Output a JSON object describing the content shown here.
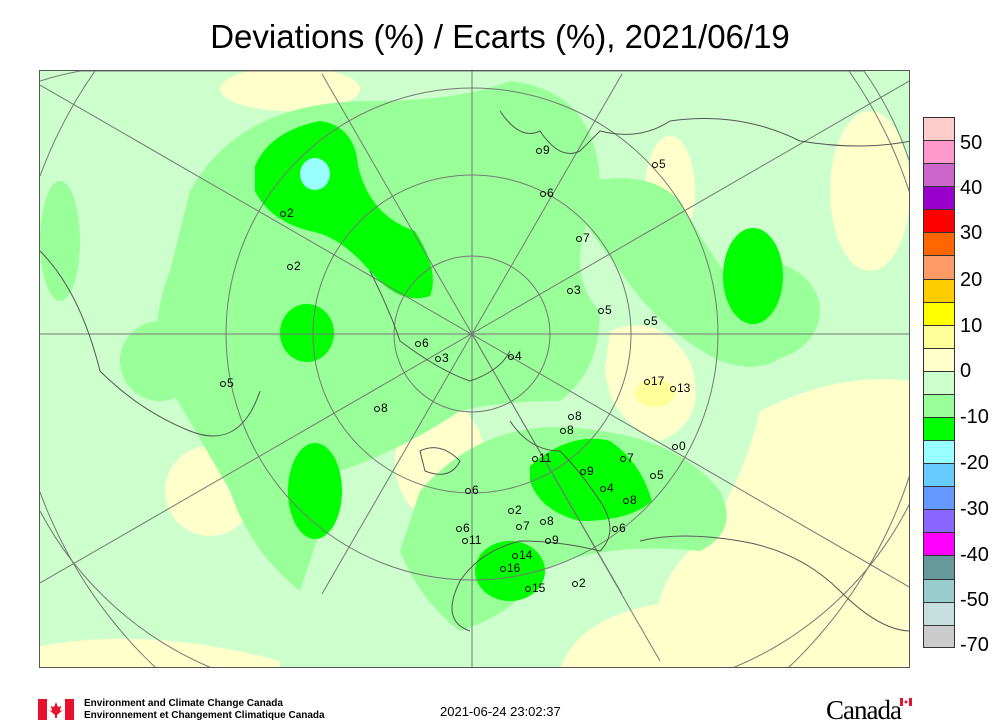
{
  "title": "Deviations (%) / Ecarts (%), 2021/06/19",
  "legend": {
    "colors": [
      "#ffcccc",
      "#ff99cc",
      "#cc66cc",
      "#9900cc",
      "#ff0000",
      "#ff6600",
      "#ff9966",
      "#ffcc00",
      "#ffff00",
      "#ffff99",
      "#ffffcc",
      "#ccffcc",
      "#99ff99",
      "#00ff00",
      "#99ffff",
      "#66ccff",
      "#6699ff",
      "#8866ff",
      "#ff00ff",
      "#669999",
      "#99cccc",
      "#c5dfdf",
      "#cccccc"
    ],
    "labels": [
      "50",
      "40",
      "30",
      "20",
      "10",
      "0",
      "-10",
      "-20",
      "-30",
      "-40",
      "-50",
      "-70"
    ]
  },
  "map": {
    "projection": "north polar stereographic",
    "fill_colors": {
      "background": "#ccffcc",
      "positive_0_5": "#ffffcc",
      "positive_5_10": "#ffff99",
      "negative_5_10": "#99ff99",
      "negative_10_15": "#00ff00",
      "negative_15_20": "#99ffff"
    },
    "stations": [
      "11",
      "9",
      "4",
      "8",
      "7",
      "5",
      "0",
      "6",
      "2",
      "8",
      "7",
      "6",
      "11",
      "8",
      "9",
      "14",
      "16",
      "15",
      "2",
      "6",
      "8",
      "17",
      "13",
      "4",
      "5",
      "5",
      "3",
      "9",
      "6",
      "5",
      "7",
      "2",
      "2",
      "6",
      "3",
      "8",
      "5"
    ]
  },
  "footer": {
    "org_en": "Environment and Climate Change Canada",
    "org_fr": "Environnement et Changement Climatique Canada",
    "timestamp": "2021-06-24 23:02:37",
    "wordmark": "Canada"
  }
}
